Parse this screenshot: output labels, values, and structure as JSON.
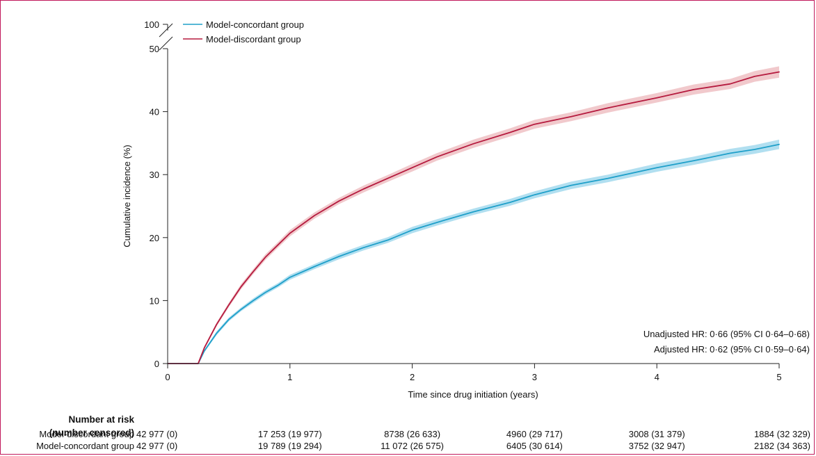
{
  "chart_data": {
    "type": "line",
    "ylabel": "Cumulative incidence (%)",
    "xlabel": "Time since drug initiation (years)",
    "xlim": [
      0,
      5
    ],
    "ylim": [
      0,
      50
    ],
    "y_break_label": "100",
    "x_ticks": [
      "0",
      "1",
      "2",
      "3",
      "4",
      "5"
    ],
    "y_ticks": [
      "0",
      "10",
      "20",
      "30",
      "40",
      "50"
    ],
    "legend_placement": "top-left",
    "grid": false,
    "series": [
      {
        "name": "Model-concordant group",
        "color": "#1e9fc9",
        "band_color": "#a8dcee",
        "x": [
          0,
          0.25,
          0.3,
          0.4,
          0.5,
          0.6,
          0.7,
          0.8,
          0.9,
          1.0,
          1.2,
          1.4,
          1.6,
          1.8,
          2.0,
          2.2,
          2.5,
          2.8,
          3.0,
          3.3,
          3.6,
          4.0,
          4.3,
          4.6,
          4.8,
          5.0
        ],
        "y": [
          0,
          0,
          2.0,
          4.8,
          7.0,
          8.6,
          10.0,
          11.3,
          12.4,
          13.7,
          15.4,
          17.0,
          18.4,
          19.6,
          21.2,
          22.4,
          24.1,
          25.6,
          26.8,
          28.3,
          29.4,
          31.1,
          32.2,
          33.4,
          34.0,
          34.8
        ],
        "ci_halfwidth": [
          0,
          0,
          0.2,
          0.3,
          0.3,
          0.3,
          0.35,
          0.35,
          0.35,
          0.4,
          0.4,
          0.45,
          0.45,
          0.45,
          0.5,
          0.5,
          0.5,
          0.55,
          0.55,
          0.6,
          0.6,
          0.65,
          0.65,
          0.7,
          0.7,
          0.75
        ]
      },
      {
        "name": "Model-discordant group",
        "color": "#b51a3e",
        "band_color": "#efc3c7",
        "x": [
          0,
          0.25,
          0.3,
          0.4,
          0.5,
          0.6,
          0.7,
          0.8,
          0.9,
          1.0,
          1.2,
          1.4,
          1.6,
          1.8,
          2.0,
          2.2,
          2.5,
          2.8,
          3.0,
          3.3,
          3.6,
          4.0,
          4.3,
          4.6,
          4.8,
          5.0
        ],
        "y": [
          0,
          0,
          2.5,
          6.2,
          9.3,
          12.2,
          14.6,
          16.9,
          18.8,
          20.7,
          23.5,
          25.8,
          27.7,
          29.4,
          31.1,
          32.8,
          34.9,
          36.7,
          38.0,
          39.2,
          40.6,
          42.2,
          43.5,
          44.4,
          45.6,
          46.3
        ],
        "ci_halfwidth": [
          0,
          0,
          0.2,
          0.3,
          0.35,
          0.4,
          0.4,
          0.45,
          0.45,
          0.5,
          0.5,
          0.5,
          0.55,
          0.55,
          0.6,
          0.6,
          0.65,
          0.65,
          0.7,
          0.7,
          0.75,
          0.75,
          0.8,
          0.8,
          0.85,
          0.9
        ]
      }
    ],
    "annotations": [
      "Unadjusted HR: 0·66 (95% CI 0·64–0·68)",
      "Adjusted HR: 0·62 (95% CI 0·59–0·64)"
    ]
  },
  "risk_table": {
    "title_line1": "Number at risk",
    "title_line2": "(number censored)",
    "rows": [
      {
        "label": "Model-discordant group",
        "cells": [
          "42 977 (0)",
          "17 253 (19 977)",
          "8738 (26 633)",
          "4960 (29 717)",
          "3008 (31 379)",
          "1884 (32 329)"
        ]
      },
      {
        "label": "Model-concordant group",
        "cells": [
          "42 977 (0)",
          "19 789 (19 294)",
          "11 072 (26 575)",
          "6405 (30 614)",
          "3752 (32 947)",
          "2182 (34 363)"
        ]
      }
    ]
  }
}
